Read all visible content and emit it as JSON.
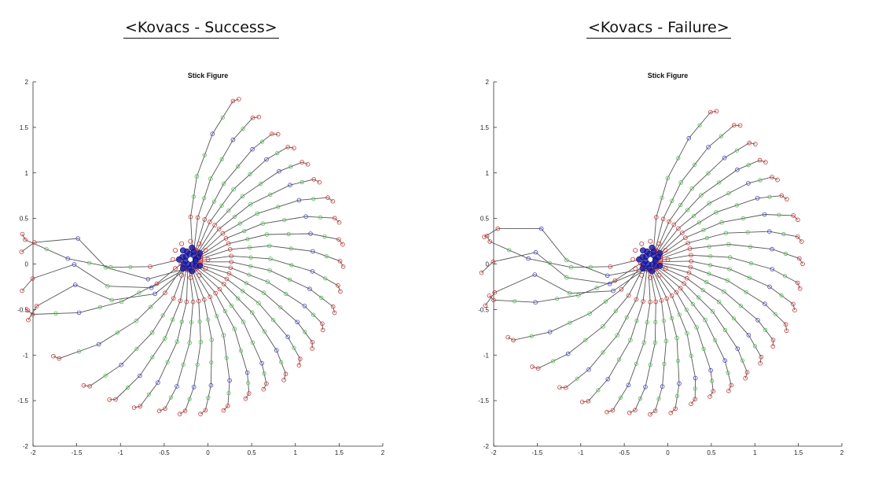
{
  "headings": {
    "left": "<Kovacs - Success>",
    "right": "<Kovacs - Failure>"
  },
  "chart_data": [
    {
      "type": "line",
      "title": "Stick Figure",
      "xlim": [
        -2,
        2
      ],
      "ylim": [
        -2,
        2
      ],
      "xticks": [
        "-2",
        "-1.5",
        "-1",
        "-0.5",
        "0",
        "0.5",
        "1",
        "1.5",
        "2"
      ],
      "yticks": [
        "2",
        "1.5",
        "1",
        "0.5",
        "0",
        "-0.5",
        "-1",
        "-1.5",
        "-2"
      ],
      "grid": false,
      "colors": {
        "links": "#555555",
        "joint_near": "#cc3333",
        "joint_mid": "#4444cc",
        "joint_green": "#55bb55",
        "center": "#1a1aa8"
      },
      "angles_deg": [
        180,
        205,
        222,
        236,
        246,
        255,
        264,
        272,
        280,
        289,
        298,
        306,
        315,
        323,
        331,
        339,
        347,
        355,
        4,
        12,
        20,
        28,
        36,
        44,
        52,
        60,
        70,
        80
      ],
      "angles_special_deg": [
        145,
        158,
        168
      ],
      "reach": [
        1.95,
        1.95,
        1.9,
        1.85,
        1.8,
        1.75,
        1.7,
        1.7,
        1.7,
        1.7,
        1.65,
        1.65,
        1.7,
        1.7,
        1.7,
        1.7,
        1.75,
        1.75,
        1.75,
        1.75,
        1.75,
        1.75,
        1.7,
        1.7,
        1.7,
        1.7,
        1.75,
        1.85
      ]
    },
    {
      "type": "line",
      "title": "Stick Figure",
      "xlim": [
        -2,
        2
      ],
      "ylim": [
        -2,
        2
      ],
      "xticks": [
        "-2",
        "-1.5",
        "-1",
        "-0.5",
        "0",
        "0.5",
        "1",
        "1.5",
        "2"
      ],
      "yticks": [
        "2",
        "1.5",
        "1",
        "0.5",
        "0",
        "-0.5",
        "-1",
        "-1.5",
        "-2"
      ],
      "grid": false,
      "colors": {
        "links": "#555555",
        "joint_near": "#cc3333",
        "joint_mid": "#4444cc",
        "joint_green": "#55bb55",
        "center": "#1a1aa8"
      },
      "angles_deg": [
        180,
        200,
        215,
        228,
        240,
        250,
        260,
        268,
        276,
        284,
        292,
        300,
        308,
        316,
        324,
        332,
        340,
        348,
        356,
        5,
        13,
        21,
        29,
        37,
        45,
        53,
        62,
        72
      ],
      "angles_special_deg": [
        140,
        152,
        163
      ],
      "reach": [
        1.9,
        1.9,
        1.85,
        1.8,
        1.75,
        1.75,
        1.75,
        1.7,
        1.7,
        1.7,
        1.65,
        1.65,
        1.7,
        1.7,
        1.7,
        1.7,
        1.75,
        1.75,
        1.75,
        1.75,
        1.75,
        1.75,
        1.7,
        1.7,
        1.7,
        1.75,
        1.8,
        1.8
      ]
    }
  ]
}
